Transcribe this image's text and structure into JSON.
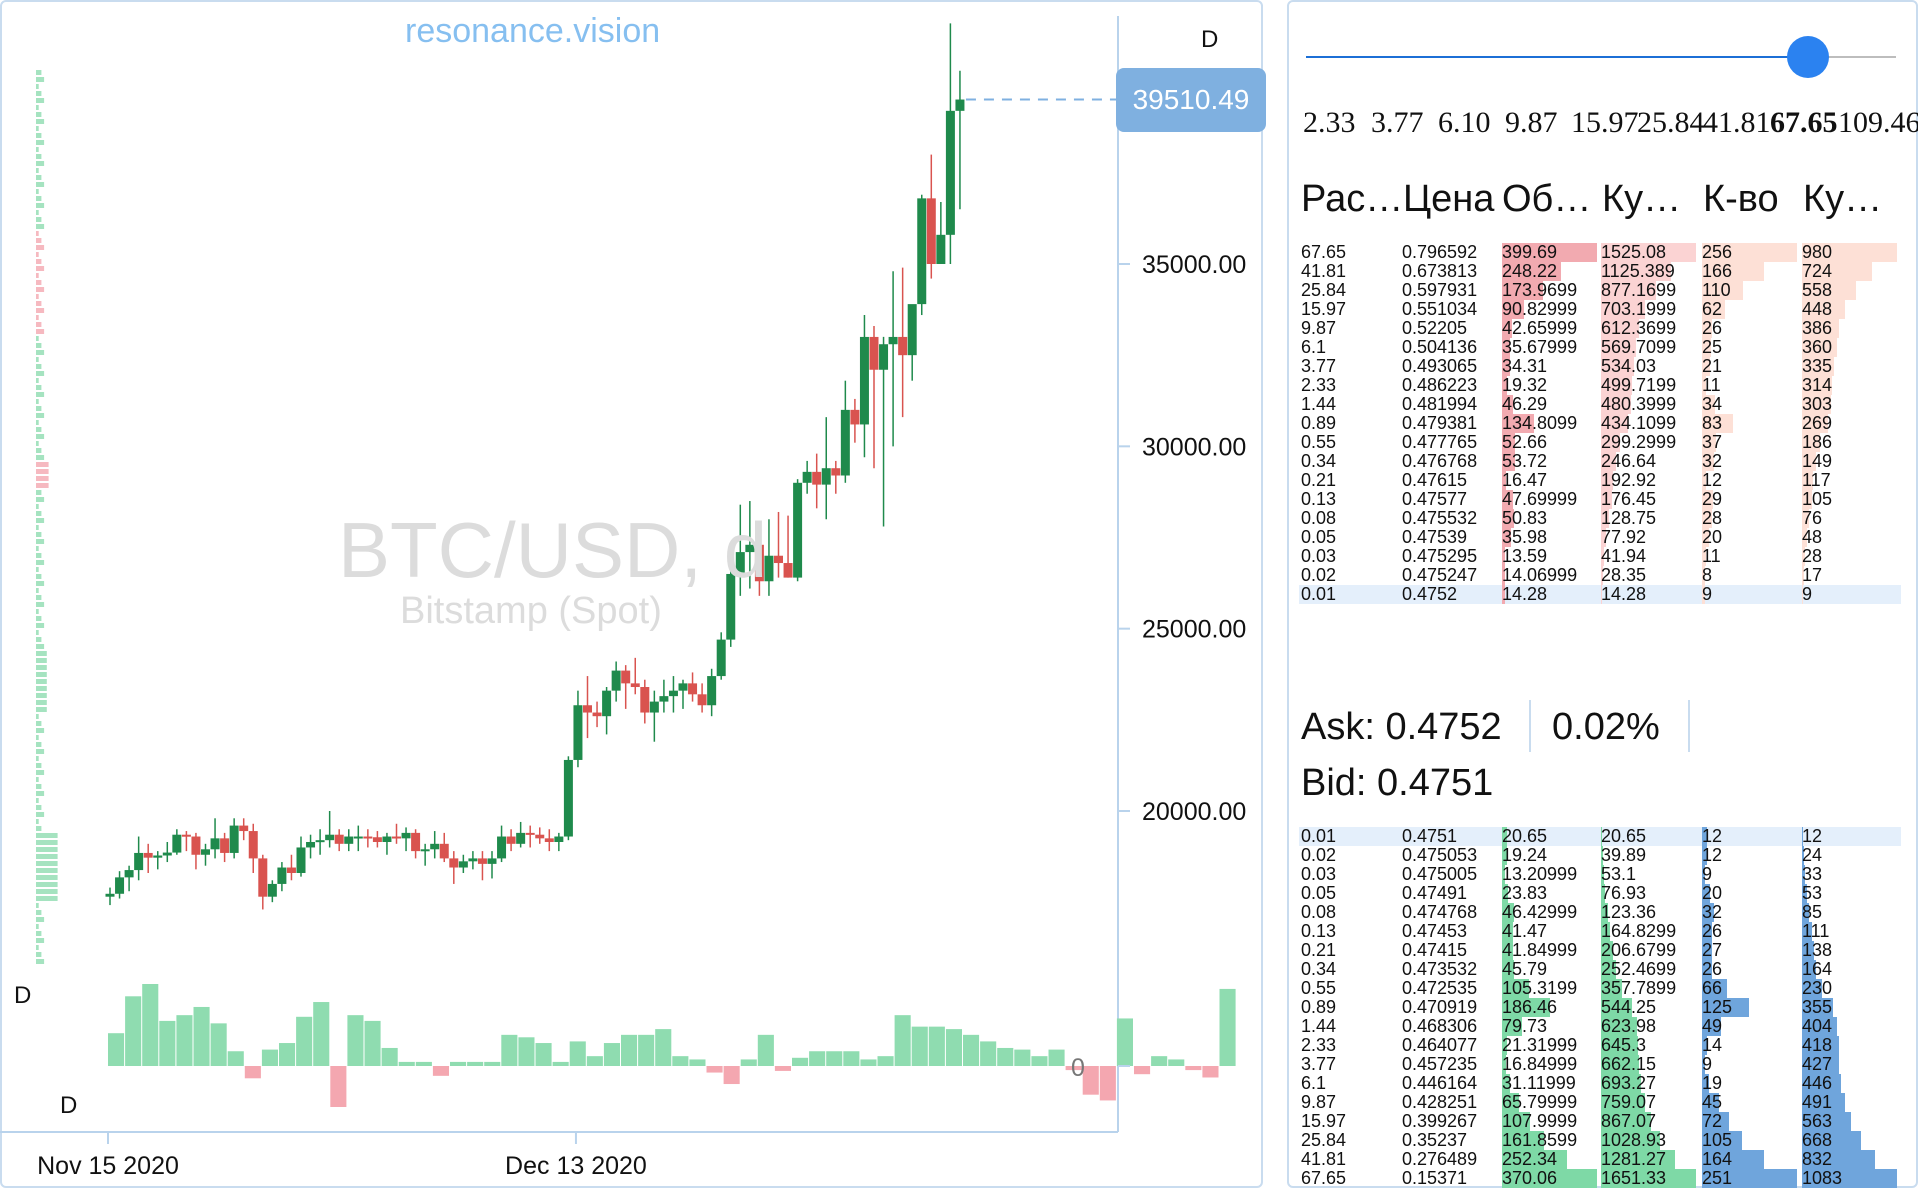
{
  "brand": "resonance.vision",
  "watermark": {
    "symbol": "BTC/USD, d",
    "exchange": "Bitstamp (Spot)"
  },
  "chart_labels": {
    "timeframe_top": "D",
    "timeframe_left": "D",
    "timeframe_bottom": "D",
    "volume_zero": "0"
  },
  "last_price": "39510.49",
  "colors": {
    "up": "#1f8a4c",
    "down": "#d9534f",
    "vol_up": "#8fdcb0",
    "vol_down": "#f4a7b0",
    "accent": "#7fb0e0",
    "ask_bar": "#f8c8c8",
    "bid_green": "#7ed9a6",
    "bid_blue": "#6fa5dc"
  },
  "chart_data": {
    "type": "candlestick",
    "ylim": [
      17000,
      41000
    ],
    "y_ticks": [
      "35000.00",
      "30000.00",
      "25000.00",
      "20000.00"
    ],
    "x_ticks": [
      "Nov 15 2020",
      "Dec 13 2020"
    ],
    "candles": [
      [
        17650,
        17900,
        17420,
        17730
      ],
      [
        17730,
        18350,
        17600,
        18180
      ],
      [
        18180,
        18500,
        17800,
        18380
      ],
      [
        18380,
        19300,
        18100,
        18850
      ],
      [
        18850,
        19100,
        18300,
        18720
      ],
      [
        18720,
        18900,
        18400,
        18780
      ],
      [
        18780,
        19150,
        18600,
        18860
      ],
      [
        18860,
        19500,
        18800,
        19350
      ],
      [
        19350,
        19450,
        18900,
        19300
      ],
      [
        19300,
        19400,
        18400,
        18800
      ],
      [
        18800,
        19100,
        18500,
        18950
      ],
      [
        18950,
        19800,
        18700,
        19250
      ],
      [
        19250,
        19400,
        18600,
        18850
      ],
      [
        18850,
        19800,
        18700,
        19600
      ],
      [
        19600,
        19800,
        19200,
        19450
      ],
      [
        19450,
        19650,
        18300,
        18700
      ],
      [
        18700,
        18800,
        17300,
        17650
      ],
      [
        17650,
        18100,
        17500,
        18000
      ],
      [
        18000,
        18600,
        17800,
        18450
      ],
      [
        18450,
        18800,
        18100,
        18300
      ],
      [
        18300,
        19300,
        18200,
        19000
      ],
      [
        19000,
        19350,
        18700,
        19150
      ],
      [
        19150,
        19500,
        18800,
        19200
      ],
      [
        19200,
        20000,
        19000,
        19350
      ],
      [
        19350,
        19500,
        18900,
        19100
      ],
      [
        19100,
        19500,
        18900,
        19300
      ],
      [
        19300,
        19600,
        18900,
        19300
      ],
      [
        19300,
        19500,
        19000,
        19280
      ],
      [
        19280,
        19450,
        19000,
        19150
      ],
      [
        19150,
        19400,
        18800,
        19300
      ],
      [
        19300,
        19650,
        19100,
        19250
      ],
      [
        19250,
        19550,
        18900,
        19400
      ],
      [
        19400,
        19500,
        18700,
        18900
      ],
      [
        18900,
        19100,
        18500,
        18950
      ],
      [
        18950,
        19450,
        18700,
        19100
      ],
      [
        19100,
        19400,
        18600,
        18700
      ],
      [
        18700,
        18900,
        18000,
        18450
      ],
      [
        18450,
        18800,
        18300,
        18620
      ],
      [
        18620,
        18900,
        18400,
        18700
      ],
      [
        18700,
        18900,
        18100,
        18550
      ],
      [
        18550,
        18900,
        18150,
        18700
      ],
      [
        18700,
        19600,
        18600,
        19300
      ],
      [
        19300,
        19500,
        18900,
        19100
      ],
      [
        19100,
        19700,
        19000,
        19400
      ],
      [
        19400,
        19600,
        19000,
        19350
      ],
      [
        19350,
        19550,
        19100,
        19250
      ],
      [
        19250,
        19500,
        18900,
        19150
      ],
      [
        19150,
        19400,
        18900,
        19300
      ],
      [
        19300,
        21500,
        19200,
        21400
      ],
      [
        21400,
        23300,
        21200,
        22900
      ],
      [
        22900,
        23700,
        22000,
        22700
      ],
      [
        22700,
        23000,
        22300,
        22600
      ],
      [
        22600,
        23400,
        22100,
        23300
      ],
      [
        23300,
        24100,
        23000,
        23850
      ],
      [
        23850,
        24000,
        22800,
        23500
      ],
      [
        23500,
        24200,
        23200,
        23400
      ],
      [
        23400,
        23600,
        22400,
        22700
      ],
      [
        22700,
        23300,
        21900,
        23000
      ],
      [
        23000,
        23600,
        22700,
        23150
      ],
      [
        23150,
        23700,
        22700,
        23300
      ],
      [
        23300,
        23600,
        22800,
        23500
      ],
      [
        23500,
        23800,
        23000,
        23200
      ],
      [
        23200,
        23500,
        22700,
        22900
      ],
      [
        22900,
        23900,
        22600,
        23700
      ],
      [
        23700,
        24900,
        23600,
        24700
      ],
      [
        24700,
        27000,
        24500,
        26500
      ],
      [
        26500,
        28400,
        25900,
        27100
      ],
      [
        27100,
        28500,
        26100,
        27300
      ],
      [
        27300,
        27400,
        25900,
        26300
      ],
      [
        26300,
        28000,
        25900,
        27000
      ],
      [
        27000,
        28200,
        26400,
        26800
      ],
      [
        26800,
        28100,
        26400,
        26400
      ],
      [
        26400,
        29100,
        26300,
        29000
      ],
      [
        29000,
        29600,
        28700,
        29300
      ],
      [
        29300,
        29800,
        28300,
        28950
      ],
      [
        28950,
        30800,
        28000,
        29400
      ],
      [
        29400,
        29600,
        28700,
        29200
      ],
      [
        29200,
        31800,
        29000,
        31000
      ],
      [
        31000,
        31300,
        30100,
        30600
      ],
      [
        30600,
        33600,
        29700,
        33000
      ],
      [
        33000,
        33300,
        29400,
        32100
      ],
      [
        32100,
        33000,
        27800,
        32800
      ],
      [
        32800,
        34800,
        30000,
        33000
      ],
      [
        33000,
        34900,
        30800,
        32500
      ],
      [
        32500,
        33700,
        31800,
        33900
      ],
      [
        33900,
        36900,
        33600,
        36800
      ],
      [
        36800,
        38000,
        34600,
        35000
      ],
      [
        35000,
        36700,
        35200,
        35800
      ],
      [
        35800,
        41600,
        35000,
        39200
      ],
      [
        39200,
        40300,
        36500,
        39510
      ]
    ],
    "volumes": [
      0.4,
      0.85,
      1.0,
      0.55,
      0.62,
      0.72,
      0.52,
      0.18,
      -0.15,
      0.2,
      0.28,
      0.6,
      0.78,
      -0.5,
      0.62,
      0.55,
      0.22,
      0.05,
      0.05,
      -0.12,
      0.05,
      0.05,
      0.05,
      0.38,
      0.35,
      0.28,
      0.05,
      0.3,
      0.12,
      0.28,
      0.38,
      0.38,
      0.45,
      0.12,
      0.08,
      -0.08,
      -0.22,
      0.08,
      0.38,
      -0.06,
      0.1,
      0.18,
      0.18,
      0.18,
      0.08,
      0.12,
      0.62,
      0.48,
      0.48,
      0.45,
      0.38,
      0.3,
      0.22,
      0.2,
      0.12,
      0.2,
      -0.05,
      -0.35,
      -0.42,
      0.58,
      -0.1,
      0.12,
      0.08,
      -0.05,
      -0.14,
      0.94
    ]
  },
  "book": {
    "slider_value": 0.85,
    "scale": [
      "2.33",
      "3.77",
      "6.10",
      "9.87",
      "15.97",
      "25.84",
      "41.81",
      "67.65",
      "109.46"
    ],
    "scale_active": "67.65",
    "headers": [
      "Рас…",
      "Цена",
      "Об…",
      "Ку…",
      "К-во",
      "Ку…"
    ],
    "asks": [
      [
        "67.65",
        "0.796592",
        "399.69",
        "1525.08",
        "256",
        "980"
      ],
      [
        "41.81",
        "0.673813",
        "248.22",
        "1125.389",
        "166",
        "724"
      ],
      [
        "25.84",
        "0.597931",
        "173.9699",
        "877.1699",
        "110",
        "558"
      ],
      [
        "15.97",
        "0.551034",
        "90.82999",
        "703.1999",
        "62",
        "448"
      ],
      [
        "9.87",
        "0.52205",
        "42.65999",
        "612.3699",
        "26",
        "386"
      ],
      [
        "6.1",
        "0.504136",
        "35.67999",
        "569.7099",
        "25",
        "360"
      ],
      [
        "3.77",
        "0.493065",
        "34.31",
        "534.03",
        "21",
        "335"
      ],
      [
        "2.33",
        "0.486223",
        "19.32",
        "499.7199",
        "11",
        "314"
      ],
      [
        "1.44",
        "0.481994",
        "46.29",
        "480.3999",
        "34",
        "303"
      ],
      [
        "0.89",
        "0.479381",
        "134.8099",
        "434.1099",
        "83",
        "269"
      ],
      [
        "0.55",
        "0.477765",
        "52.66",
        "299.2999",
        "37",
        "186"
      ],
      [
        "0.34",
        "0.476768",
        "53.72",
        "246.64",
        "32",
        "149"
      ],
      [
        "0.21",
        "0.47615",
        "16.47",
        "192.92",
        "12",
        "117"
      ],
      [
        "0.13",
        "0.47577",
        "47.69999",
        "176.45",
        "29",
        "105"
      ],
      [
        "0.08",
        "0.475532",
        "50.83",
        "128.75",
        "28",
        "76"
      ],
      [
        "0.05",
        "0.47539",
        "35.98",
        "77.92",
        "20",
        "48"
      ],
      [
        "0.03",
        "0.475295",
        "13.59",
        "41.94",
        "11",
        "28"
      ],
      [
        "0.02",
        "0.475247",
        "14.06999",
        "28.35",
        "8",
        "17"
      ],
      [
        "0.01",
        "0.4752",
        "14.28",
        "14.28",
        "9",
        "9"
      ]
    ],
    "ask_label": "Ask: 0.4752",
    "spread_pct": "0.02%",
    "bid_label": "Bid: 0.4751",
    "bids": [
      [
        "0.01",
        "0.4751",
        "20.65",
        "20.65",
        "12",
        "12"
      ],
      [
        "0.02",
        "0.475053",
        "19.24",
        "39.89",
        "12",
        "24"
      ],
      [
        "0.03",
        "0.475005",
        "13.20999",
        "53.1",
        "9",
        "33"
      ],
      [
        "0.05",
        "0.47491",
        "23.83",
        "76.93",
        "20",
        "53"
      ],
      [
        "0.08",
        "0.474768",
        "46.42999",
        "123.36",
        "32",
        "85"
      ],
      [
        "0.13",
        "0.47453",
        "41.47",
        "164.8299",
        "26",
        "111"
      ],
      [
        "0.21",
        "0.47415",
        "41.84999",
        "206.6799",
        "27",
        "138"
      ],
      [
        "0.34",
        "0.473532",
        "45.79",
        "252.4699",
        "26",
        "164"
      ],
      [
        "0.55",
        "0.472535",
        "105.3199",
        "357.7899",
        "66",
        "230"
      ],
      [
        "0.89",
        "0.470919",
        "186.46",
        "544.25",
        "125",
        "355"
      ],
      [
        "1.44",
        "0.468306",
        "79.73",
        "623.98",
        "49",
        "404"
      ],
      [
        "2.33",
        "0.464077",
        "21.31999",
        "645.3",
        "14",
        "418"
      ],
      [
        "3.77",
        "0.457235",
        "16.84999",
        "662.15",
        "9",
        "427"
      ],
      [
        "6.1",
        "0.446164",
        "31.11999",
        "693.27",
        "19",
        "446"
      ],
      [
        "9.87",
        "0.428251",
        "65.79999",
        "759.07",
        "45",
        "491"
      ],
      [
        "15.97",
        "0.399267",
        "107.9999",
        "867.07",
        "72",
        "563"
      ],
      [
        "25.84",
        "0.35237",
        "161.8599",
        "1028.93",
        "105",
        "668"
      ],
      [
        "41.81",
        "0.276489",
        "252.34",
        "1281.27",
        "164",
        "832"
      ],
      [
        "67.65",
        "0.15371",
        "370.06",
        "1651.33",
        "251",
        "1083"
      ]
    ]
  }
}
